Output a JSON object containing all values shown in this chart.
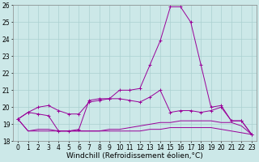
{
  "xlabel": "Windchill (Refroidissement éolien,°C)",
  "x": [
    0,
    1,
    2,
    3,
    4,
    5,
    6,
    7,
    8,
    9,
    10,
    11,
    12,
    13,
    14,
    15,
    16,
    17,
    18,
    19,
    20,
    21,
    22,
    23
  ],
  "line1": [
    19.3,
    19.7,
    19.6,
    19.5,
    18.6,
    18.6,
    18.7,
    20.4,
    20.5,
    20.5,
    21.0,
    21.0,
    21.1,
    22.5,
    23.9,
    25.9,
    25.9,
    25.0,
    22.5,
    20.0,
    20.1,
    19.2,
    19.2,
    18.4
  ],
  "line2": [
    19.3,
    19.7,
    20.0,
    20.1,
    19.8,
    19.6,
    19.6,
    20.3,
    20.4,
    20.5,
    20.5,
    20.4,
    20.3,
    20.6,
    21.0,
    19.7,
    19.8,
    19.8,
    19.7,
    19.8,
    20.0,
    19.2,
    19.2,
    18.4
  ],
  "line3": [
    19.3,
    18.6,
    18.6,
    18.6,
    18.6,
    18.6,
    18.6,
    18.6,
    18.6,
    18.6,
    18.6,
    18.6,
    18.6,
    18.7,
    18.7,
    18.8,
    18.8,
    18.8,
    18.8,
    18.8,
    18.7,
    18.6,
    18.5,
    18.4
  ],
  "line4": [
    19.3,
    18.6,
    18.7,
    18.7,
    18.6,
    18.6,
    18.6,
    18.6,
    18.6,
    18.7,
    18.7,
    18.8,
    18.9,
    19.0,
    19.1,
    19.1,
    19.2,
    19.2,
    19.2,
    19.2,
    19.1,
    19.1,
    18.9,
    18.4
  ],
  "line_color": "#990099",
  "bg_color": "#cce8e8",
  "grid_color": "#aad0d0",
  "ylim": [
    18,
    26
  ],
  "yticks": [
    18,
    19,
    20,
    21,
    22,
    23,
    24,
    25,
    26
  ],
  "xticks": [
    0,
    1,
    2,
    3,
    4,
    5,
    6,
    7,
    8,
    9,
    10,
    11,
    12,
    13,
    14,
    15,
    16,
    17,
    18,
    19,
    20,
    21,
    22,
    23
  ],
  "tick_fontsize": 5.5,
  "label_fontsize": 6.5
}
